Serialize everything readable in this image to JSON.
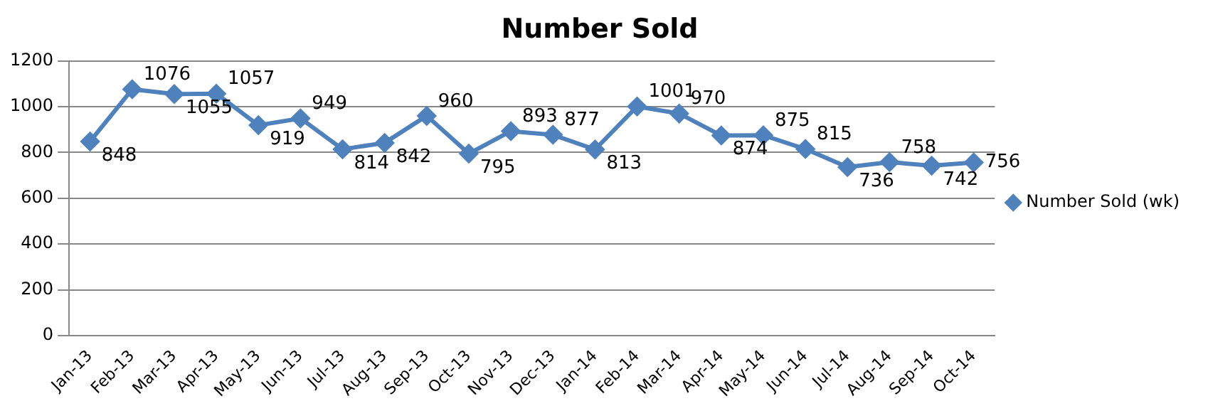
{
  "chart_data": {
    "type": "line",
    "title": "Number Sold",
    "categories": [
      "Jan-13",
      "Feb-13",
      "Mar-13",
      "Apr-13",
      "May-13",
      "Jun-13",
      "Jul-13",
      "Aug-13",
      "Sep-13",
      "Oct-13",
      "Nov-13",
      "Dec-13",
      "Jan-14",
      "Feb-14",
      "Mar-14",
      "Apr-14",
      "May-14",
      "Jun-14",
      "Jul-14",
      "Aug-14",
      "Sep-14",
      "Oct-14"
    ],
    "series": [
      {
        "name": "Number Sold (wk)",
        "color": "#4f81bd",
        "values": [
          848,
          1076,
          1055,
          1057,
          919,
          949,
          814,
          842,
          960,
          795,
          893,
          877,
          813,
          1001,
          970,
          874,
          875,
          815,
          736,
          758,
          742,
          756
        ]
      }
    ],
    "ylim": [
      0,
      1200
    ],
    "yticks": [
      0,
      200,
      400,
      600,
      800,
      1000,
      1200
    ],
    "grid": "y",
    "legend": "right",
    "marker": "diamond",
    "line_style": "solid",
    "data_labels": true
  }
}
